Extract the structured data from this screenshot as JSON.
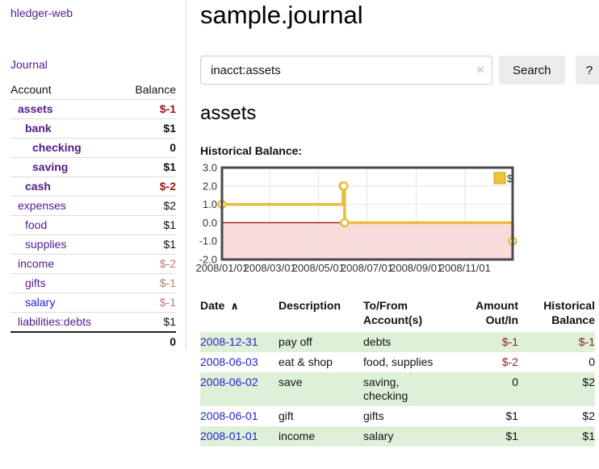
{
  "app_title": "hledger-web",
  "sidebar": {
    "journal_link": "Journal",
    "account_header": "Account",
    "balance_header": "Balance",
    "accounts": [
      {
        "account": "assets",
        "balance": "$-1",
        "depth": 1,
        "bold": true,
        "link_class": "lnk-purple",
        "balance_class": "neg"
      },
      {
        "account": "bank",
        "balance": "$1",
        "depth": 2,
        "bold": true,
        "link_class": "lnk-purple",
        "balance_class": "plain"
      },
      {
        "account": "checking",
        "balance": "0",
        "depth": 3,
        "bold": true,
        "link_class": "lnk-purple",
        "balance_class": "plain"
      },
      {
        "account": "saving",
        "balance": "$1",
        "depth": 3,
        "bold": true,
        "link_class": "lnk-purple",
        "balance_class": "plain"
      },
      {
        "account": "cash",
        "balance": "$-2",
        "depth": 2,
        "bold": true,
        "link_class": "lnk-purple",
        "balance_class": "neg"
      },
      {
        "account": "expenses",
        "balance": "$2",
        "depth": 1,
        "bold": false,
        "link_class": "lnk-purple",
        "balance_class": "plain"
      },
      {
        "account": "food",
        "balance": "$1",
        "depth": 2,
        "bold": false,
        "link_class": "lnk-purple",
        "balance_class": "plain"
      },
      {
        "account": "supplies",
        "balance": "$1",
        "depth": 2,
        "bold": false,
        "link_class": "lnk-purple",
        "balance_class": "plain"
      },
      {
        "account": "income",
        "balance": "$-2",
        "depth": 1,
        "bold": false,
        "link_class": "lnk-purple",
        "balance_class": "dimneg"
      },
      {
        "account": "gifts",
        "balance": "$-1",
        "depth": 2,
        "bold": false,
        "link_class": "lnk-purple",
        "balance_class": "dimneg"
      },
      {
        "account": "salary",
        "balance": "$-1",
        "depth": 2,
        "bold": false,
        "link_class": "lnk-blue",
        "balance_class": "dimneg"
      },
      {
        "account": "liabilities:debts",
        "balance": "$1",
        "depth": 1,
        "bold": false,
        "link_class": "lnk-purple",
        "balance_class": "plain"
      }
    ],
    "total": "0"
  },
  "main": {
    "title": "sample.journal",
    "search": {
      "value": "inacct:assets",
      "clear_icon": "×",
      "search_button": "Search",
      "help_button": "?"
    },
    "account_heading": "assets",
    "chart_heading": "Historical Balance:"
  },
  "register": {
    "headers": {
      "date": "Date",
      "sort_icon": "∧",
      "description": "Description",
      "accounts_line1": "To/From",
      "accounts_line2": "Account(s)",
      "amount_line1": "Amount",
      "amount_line2": "Out/In",
      "balance_line1": "Historical",
      "balance_line2": "Balance"
    },
    "rows": [
      {
        "date": "2008-12-31",
        "description": "pay off",
        "accounts": [
          "debts"
        ],
        "wrap": false,
        "amount": "$-1",
        "amount_class": "neg",
        "balance": "$-1",
        "balance_class": "neg",
        "green": true
      },
      {
        "date": "2008-06-03",
        "description": "eat & shop",
        "accounts": [
          "food",
          "supplies"
        ],
        "wrap": false,
        "amount": "$-2",
        "amount_class": "neg",
        "balance": "0",
        "balance_class": "plain",
        "green": false
      },
      {
        "date": "2008-06-02",
        "description": "save",
        "accounts": [
          "saving",
          "checking"
        ],
        "wrap": true,
        "amount": "0",
        "amount_class": "plain",
        "balance": "$2",
        "balance_class": "plain",
        "green": true
      },
      {
        "date": "2008-06-01",
        "description": "gift",
        "accounts": [
          "gifts"
        ],
        "wrap": false,
        "amount": "$1",
        "amount_class": "plain",
        "balance": "$2",
        "balance_class": "plain",
        "green": false
      },
      {
        "date": "2008-01-01",
        "description": "income",
        "accounts": [
          "salary"
        ],
        "wrap": false,
        "amount": "$1",
        "amount_class": "plain",
        "balance": "$1",
        "balance_class": "plain",
        "green": true
      }
    ]
  },
  "chart_data": {
    "type": "line",
    "title": "Historical Balance:",
    "step": true,
    "series": [
      {
        "name": "$",
        "points": [
          {
            "date": "2008-01-01",
            "day": 0,
            "value": 1
          },
          {
            "date": "2008-06-01",
            "day": 152,
            "value": 2
          },
          {
            "date": "2008-06-02",
            "day": 153,
            "value": 2
          },
          {
            "date": "2008-06-03",
            "day": 154,
            "value": 0
          },
          {
            "date": "2008-12-31",
            "day": 365,
            "value": -1
          }
        ]
      }
    ],
    "x_domain_days": [
      0,
      365
    ],
    "x_ticks": [
      {
        "label": "2008/01/01",
        "day": 0
      },
      {
        "label": "2008/03/01",
        "day": 60
      },
      {
        "label": "2008/05/01",
        "day": 121
      },
      {
        "label": "2008/07/01",
        "day": 182
      },
      {
        "label": "2008/09/01",
        "day": 244
      },
      {
        "label": "2008/11/01",
        "day": 305
      }
    ],
    "y_ticks": [
      3.0,
      2.0,
      1.0,
      0.0,
      -1.0,
      -2.0
    ],
    "ylim": [
      -2,
      3
    ],
    "legend": {
      "label": "$",
      "position": "top-right"
    },
    "grid": true,
    "colors": {
      "line": "#e9bc3f",
      "marker_fill": "#ffffff",
      "negative_fill": "#fadbdb",
      "zero_line": "#990000",
      "border": "#4a4a4a",
      "grid": "#e4e4e4",
      "legend_fill": "#eec23d",
      "legend_stroke": "#cfa21b",
      "tick_text": "#333333"
    }
  },
  "colors": {
    "link_purple": "#551a8b",
    "link_blue": "#2222cc",
    "negative": "#961919",
    "negative_dim": "#bb7b7b",
    "row_green": "#dff0d8",
    "button_bg": "#ececec"
  }
}
